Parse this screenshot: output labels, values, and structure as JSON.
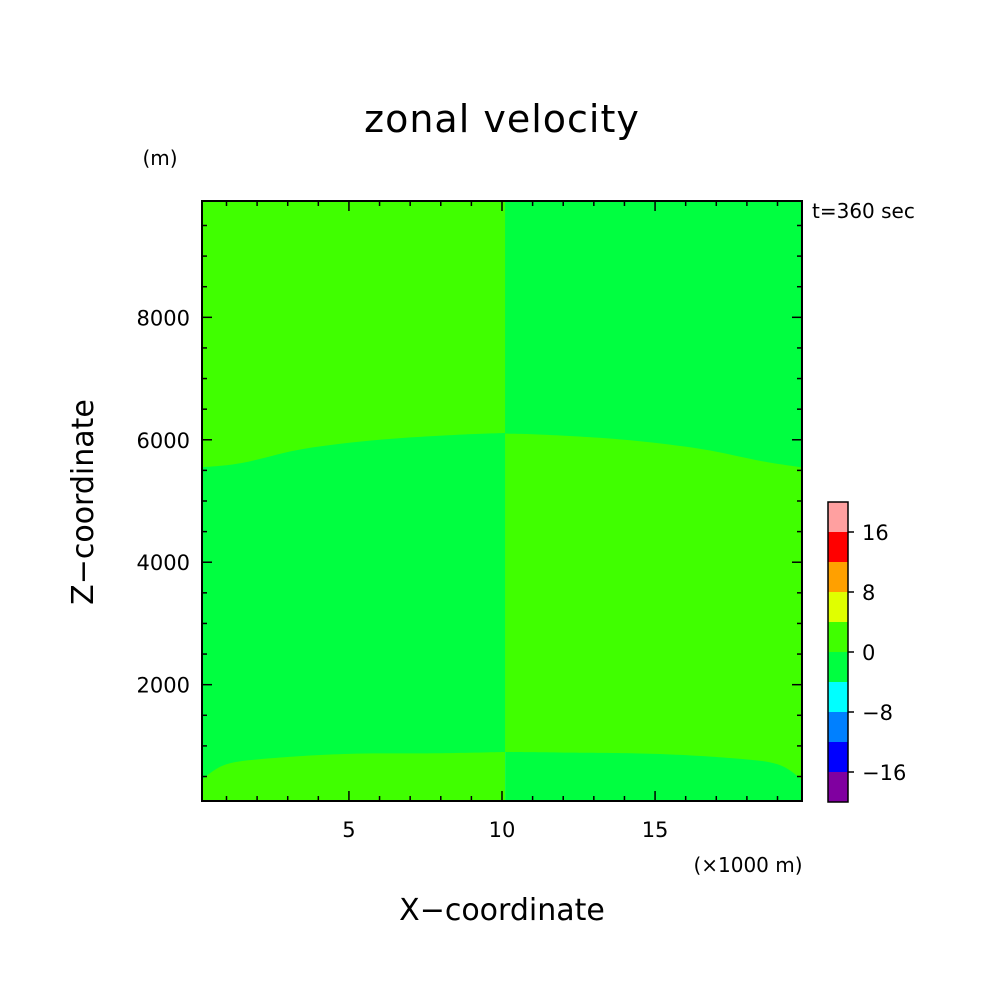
{
  "chart_data": {
    "type": "heatmap",
    "title": "zonal velocity",
    "xlabel": "X−coordinate",
    "ylabel": "Z−coordinate",
    "x_unit": "(×1000 m)",
    "y_unit": "(m)",
    "time_label": "t=360 sec",
    "xlim": [
      0.2,
      19.8
    ],
    "ylim": [
      100,
      9900
    ],
    "x_ticks": [
      5,
      10,
      15
    ],
    "x_tick_labels": [
      "5",
      "10",
      "15"
    ],
    "y_ticks": [
      2000,
      4000,
      6000,
      8000
    ],
    "y_tick_labels": [
      "2000",
      "4000",
      "6000",
      "8000"
    ],
    "grid": false,
    "colorbar": {
      "levels": [
        -20,
        -16,
        -12,
        -8,
        -4,
        0,
        4,
        8,
        12,
        16,
        20
      ],
      "colors": [
        "#8000a0",
        "#0000ff",
        "#0080ff",
        "#00ffff",
        "#00ff40",
        "#40ff00",
        "#e0ff00",
        "#ffa000",
        "#ff0000",
        "#ffa0a0"
      ],
      "tick_values": [
        -16,
        -8,
        0,
        8,
        16
      ],
      "tick_labels": [
        "−16",
        "−8",
        "0",
        "8",
        "16"
      ]
    },
    "regions": [
      {
        "name": "left-top",
        "level": "0 to 4",
        "color": "#40ff00",
        "x_range": [
          0.2,
          10.1
        ],
        "z_boundary_lower": [
          [
            0.2,
            5550
          ],
          [
            1.5,
            5620
          ],
          [
            3.5,
            5850
          ],
          [
            6,
            6000
          ],
          [
            8.5,
            6080
          ],
          [
            10.1,
            6110
          ]
        ],
        "z_upper": 9900
      },
      {
        "name": "left-middle",
        "level": "-4 to 0",
        "color": "#00ff40",
        "x_range": [
          0.2,
          10.1
        ],
        "z_lower_boundary": [
          [
            0.2,
            450
          ],
          [
            1,
            700
          ],
          [
            2.5,
            800
          ],
          [
            5,
            870
          ],
          [
            8,
            880
          ],
          [
            10.1,
            900
          ]
        ]
      },
      {
        "name": "left-bottom",
        "level": "0 to 4",
        "color": "#40ff00",
        "x_range": [
          0.2,
          10.1
        ],
        "z_lower": 100
      },
      {
        "name": "right-top",
        "level": "-4 to 0",
        "color": "#00ff40",
        "x_range": [
          10.1,
          19.8
        ],
        "z_boundary_lower": [
          [
            10.1,
            6100
          ],
          [
            11.5,
            6080
          ],
          [
            14,
            6000
          ],
          [
            16.5,
            5850
          ],
          [
            18.5,
            5650
          ],
          [
            19.8,
            5550
          ]
        ],
        "z_upper": 9900
      },
      {
        "name": "right-middle",
        "level": "0 to 4",
        "color": "#40ff00",
        "x_range": [
          10.1,
          19.8
        ],
        "z_lower_boundary": [
          [
            10.1,
            900
          ],
          [
            12,
            890
          ],
          [
            15,
            870
          ],
          [
            17.5,
            800
          ],
          [
            19,
            700
          ],
          [
            19.8,
            450
          ]
        ]
      },
      {
        "name": "right-bottom",
        "level": "-4 to 0",
        "color": "#00ff40",
        "x_range": [
          10.1,
          19.8
        ],
        "z_lower": 100
      }
    ]
  }
}
